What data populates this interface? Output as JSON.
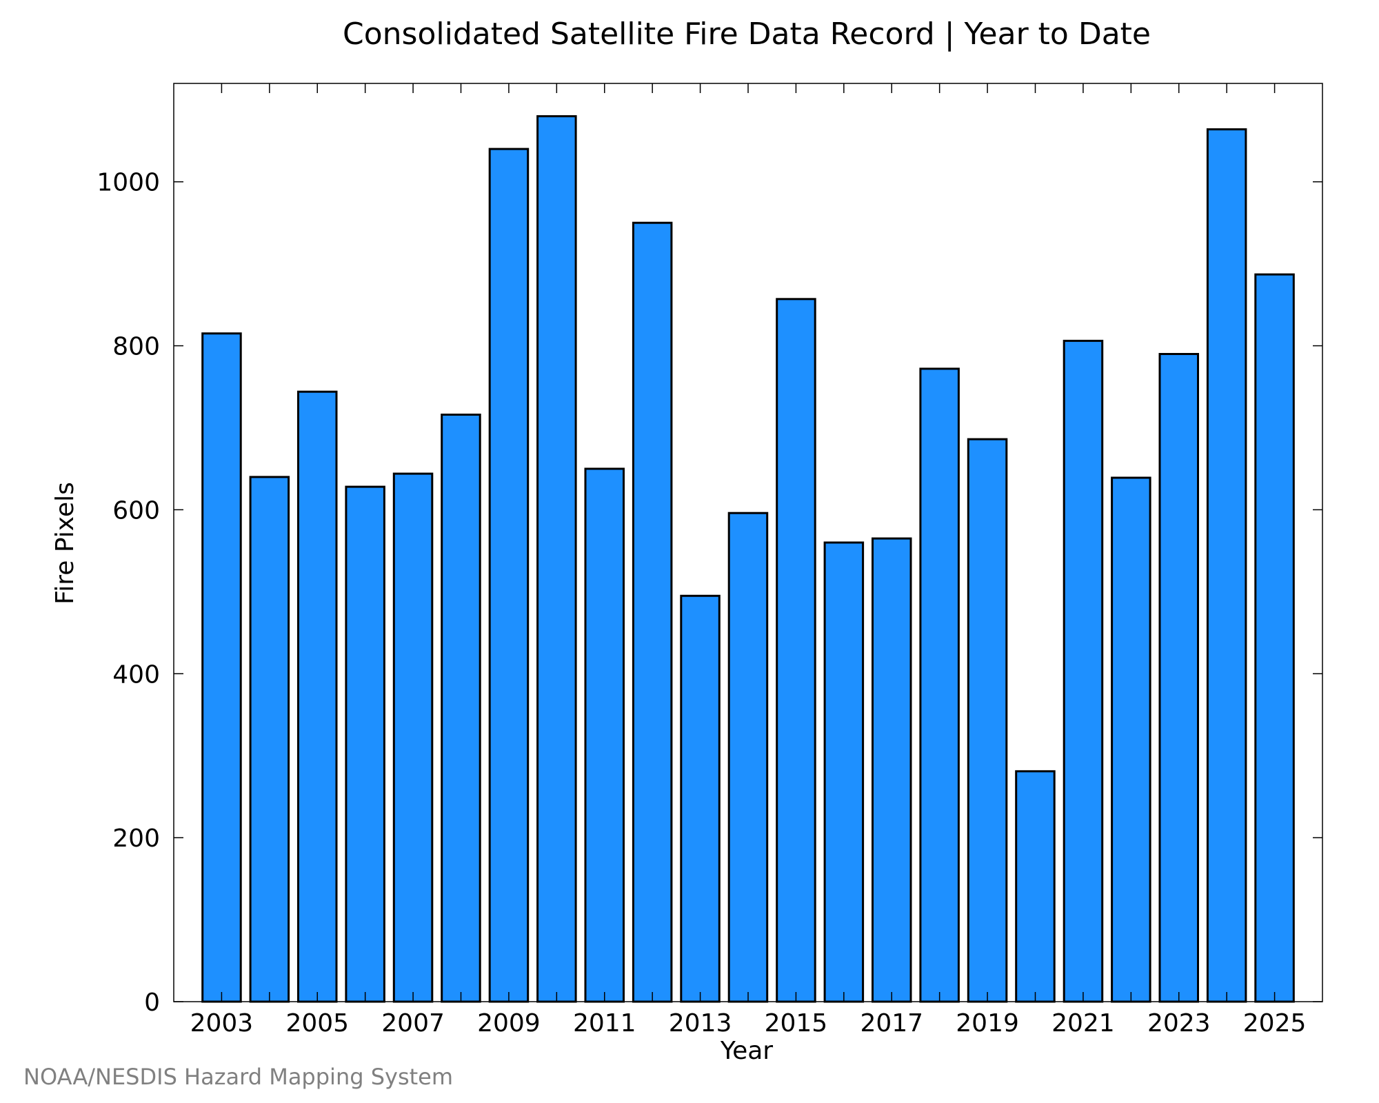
{
  "chart_data": {
    "type": "bar",
    "title": "Consolidated Satellite Fire Data Record | Year to Date",
    "xlabel": "Year",
    "ylabel": "Fire Pixels",
    "credit": "NOAA/NESDIS Hazard Mapping System",
    "categories": [
      "2003",
      "2004",
      "2005",
      "2006",
      "2007",
      "2008",
      "2009",
      "2010",
      "2011",
      "2012",
      "2013",
      "2014",
      "2015",
      "2016",
      "2017",
      "2018",
      "2019",
      "2020",
      "2021",
      "2022",
      "2023",
      "2024",
      "2025"
    ],
    "x_tick_labels": [
      "2003",
      "2005",
      "2007",
      "2009",
      "2011",
      "2013",
      "2015",
      "2017",
      "2019",
      "2021",
      "2023",
      "2025"
    ],
    "values": [
      815,
      640,
      744,
      628,
      644,
      716,
      1040,
      1080,
      650,
      950,
      495,
      596,
      857,
      560,
      565,
      772,
      686,
      281,
      806,
      639,
      790,
      1064,
      887
    ],
    "ylim": [
      0,
      1120
    ],
    "y_ticks": [
      0,
      200,
      400,
      600,
      800,
      1000
    ],
    "bar_color": "#1e90ff",
    "edge_color": "#000000",
    "grid": false,
    "legend": "none"
  }
}
